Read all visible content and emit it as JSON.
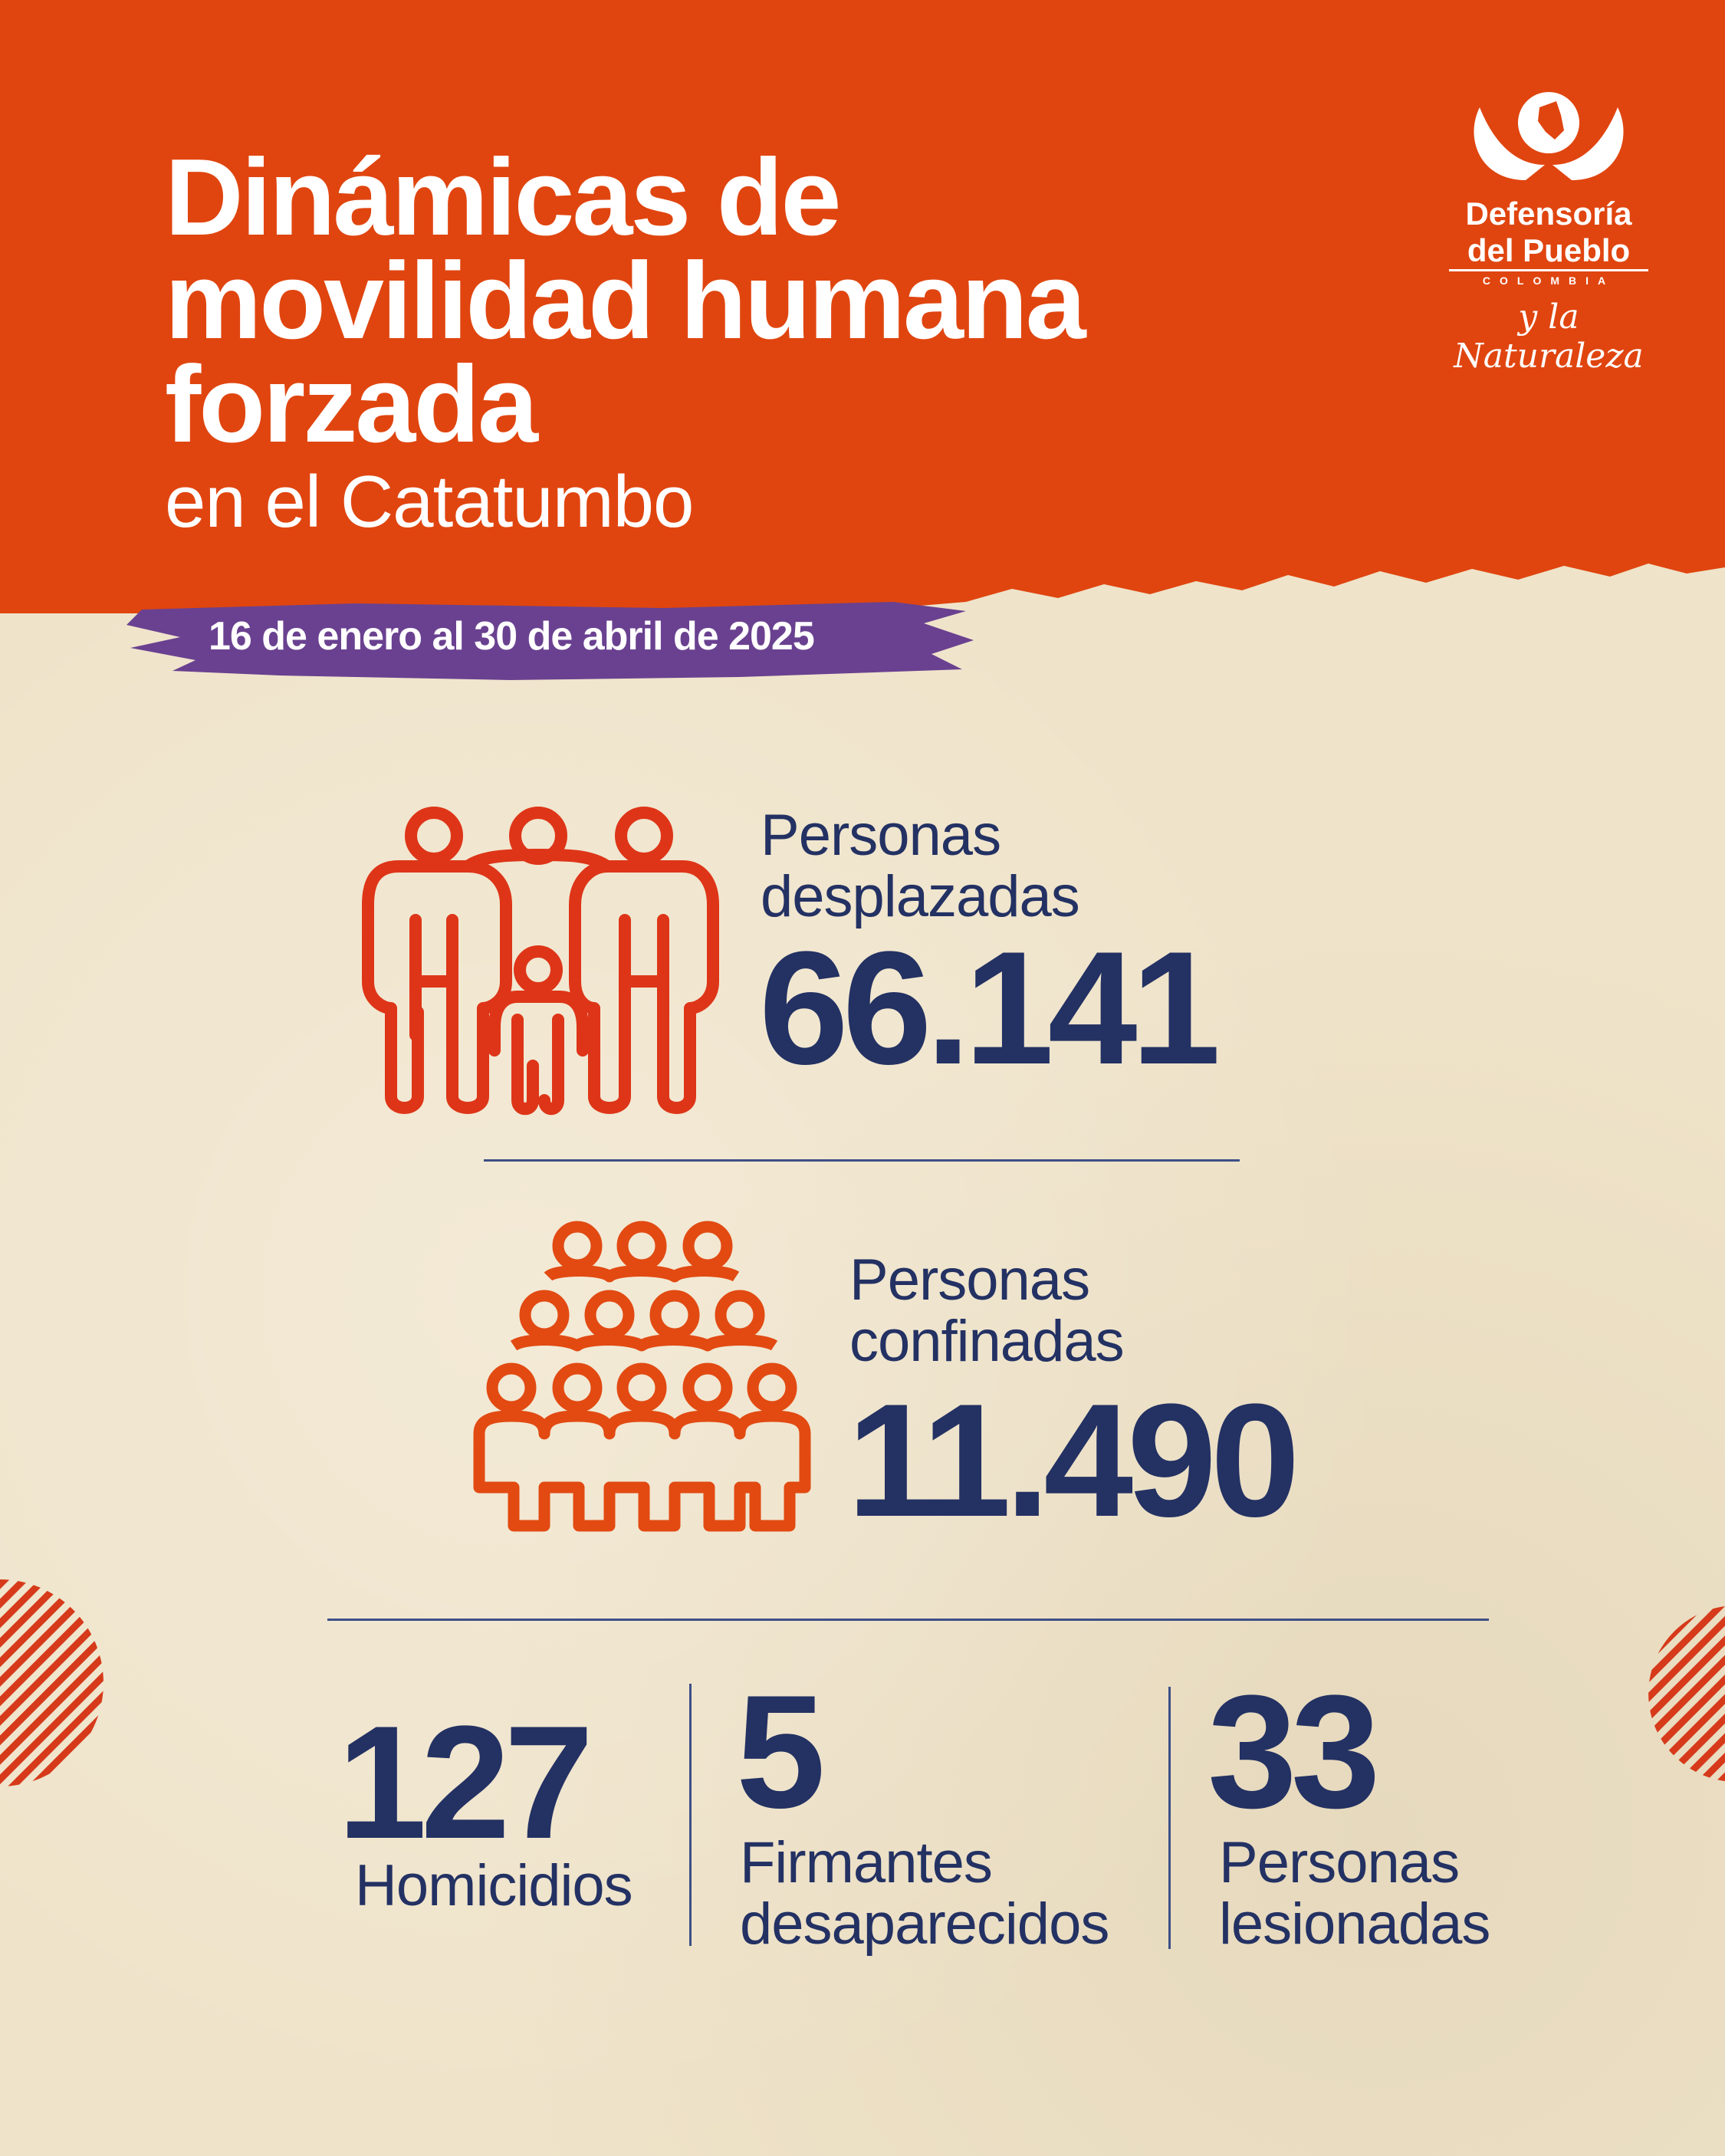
{
  "header": {
    "title_lines": [
      "Dinámicas de",
      "movilidad humana",
      "forzada"
    ],
    "subtitle": "en el Catatumbo",
    "date_range": "16 de enero al 30 de abril de 2025"
  },
  "logo": {
    "line1": "Defensoría",
    "line2": "del Pueblo",
    "country": "COLOMBIA",
    "tagline": "y la Naturaleza"
  },
  "stats": {
    "displaced": {
      "label_line1": "Personas",
      "label_line2": "desplazadas",
      "value": "66.141",
      "icon": "family-icon"
    },
    "confined": {
      "label_line1": "Personas",
      "label_line2": "confinadas",
      "value": "11.490",
      "icon": "crowd-icon"
    },
    "homicides": {
      "value": "127",
      "label": "Homicidios"
    },
    "missing_signatories": {
      "value": "5",
      "label_line1": "Firmantes",
      "label_line2": "desaparecidos"
    },
    "injured": {
      "value": "33",
      "label_line1": "Personas",
      "label_line2": "lesionadas"
    }
  },
  "colors": {
    "orange": "#e0450f",
    "navy": "#233163",
    "purple": "#6a4190",
    "icon_red": "#de3518",
    "paper": "#efe3c9"
  }
}
